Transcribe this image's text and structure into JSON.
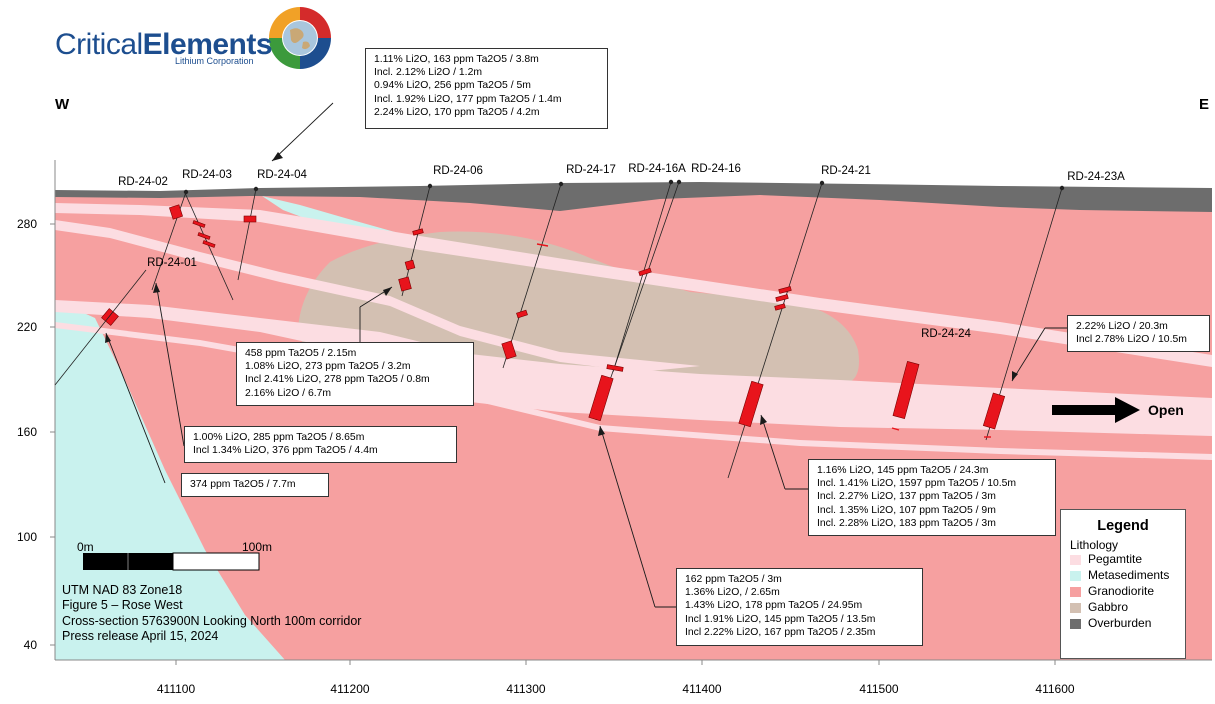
{
  "logo": {
    "name_regular": "Critical",
    "name_bold": "Elements",
    "subtitle": "Lithium Corporation"
  },
  "compass": {
    "west": "W",
    "east": "E"
  },
  "y_axis_ticks": [
    "280",
    "220",
    "160",
    "100",
    "40"
  ],
  "x_axis_ticks": [
    "411100",
    "411200",
    "411300",
    "411400",
    "411500",
    "411600"
  ],
  "drillholes": [
    "RD-24-02",
    "RD-24-03",
    "RD-24-04",
    "RD-24-06",
    "RD-24-17",
    "RD-24-16A",
    "RD-24-16",
    "RD-24-21",
    "RD-24-23A",
    "RD-24-01",
    "RD-24-24"
  ],
  "annotations": {
    "rd04": [
      "1.11% Li2O, 163 ppm Ta2O5 / 3.8m",
      "Incl. 2.12% Li2O / 1.2m",
      "0.94% Li2O, 256 ppm Ta2O5 / 5m",
      "Incl. 1.92% Li2O, 177 ppm Ta2O5 / 1.4m",
      "2.24% Li2O, 170 ppm Ta2O5 / 4.2m"
    ],
    "rd06": [
      "458 ppm Ta2O5 / 2.15m",
      "1.08% Li2O, 273 ppm Ta2O5 / 3.2m",
      "Incl 2.41% Li2O, 278 ppm Ta2O5 / 0.8m",
      "2.16% Li2O / 6.7m"
    ],
    "rd02": [
      "1.00% Li2O, 285 ppm Ta2O5 / 8.65m",
      "Incl 1.34% Li2O, 376 ppm Ta2O5 / 4.4m"
    ],
    "rd01": [
      "374 ppm Ta2O5 / 7.7m"
    ],
    "rd23a": [
      "2.22% Li2O / 20.3m",
      "Incl 2.78% Li2O / 10.5m"
    ],
    "rd21": [
      "1.16% Li2O, 145 ppm Ta2O5 / 24.3m",
      "Incl. 1.41% Li2O, 1597 ppm Ta2O5 / 10.5m",
      "Incl. 2.27% Li2O, 137 ppm Ta2O5 / 3m",
      "Incl. 1.35% Li2O, 107 ppm Ta2O5 / 9m",
      "Incl. 2.28% Li2O, 183 ppm Ta2O5 / 3m"
    ],
    "rd17": [
      "162 ppm Ta2O5 / 3m",
      "1.36% Li2O, / 2.65m",
      "1.43% Li2O, 178 ppm Ta2O5 / 24.95m",
      "Incl 1.91% Li2O, 145 ppm Ta2O5 / 13.5m",
      "Incl 2.22% Li2O, 167 ppm Ta2O5 / 2.35m"
    ]
  },
  "open_label": "Open",
  "scale": {
    "start": "0m",
    "end": "100m"
  },
  "info_lines": [
    "UTM NAD 83 Zone18",
    "Figure 5 – Rose West",
    "Cross-section 5763900N Looking North 100m corridor",
    "Press release April 15, 2024"
  ],
  "legend": {
    "title": "Legend",
    "subtitle": "Lithology",
    "items": [
      {
        "label": "Pegamtite",
        "color": "#fcdde2"
      },
      {
        "label": "Metasediments",
        "color": "#c9f2ee"
      },
      {
        "label": "Granodiorite",
        "color": "#f6a0a0"
      },
      {
        "label": "Gabbro",
        "color": "#d3c0b2"
      },
      {
        "label": "Overburden",
        "color": "#6d6d6d"
      }
    ]
  },
  "colors": {
    "granodiorite": "#f6a0a0",
    "pegmatite": "#fcdde2",
    "metasediments": "#c9f2ee",
    "gabbro": "#d3c0b2",
    "overburden": "#6d6d6d",
    "intercept": "#e8141c",
    "logo_blue": "#1d4e8f"
  }
}
